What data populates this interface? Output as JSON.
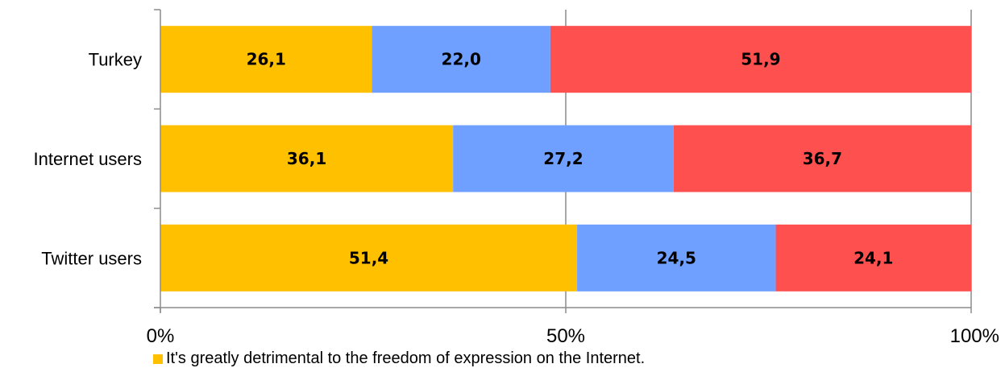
{
  "chart_data": {
    "type": "bar",
    "orientation": "horizontal",
    "stacked": "percent",
    "categories": [
      "Turkey",
      "Internet users",
      "Twitter users"
    ],
    "series": [
      {
        "values": [
          26.1,
          36.1,
          51.4
        ],
        "labels": [
          "26,1",
          "36,1",
          "51,4"
        ],
        "color": "#FFC000"
      },
      {
        "values": [
          22.0,
          27.2,
          24.5
        ],
        "labels": [
          "22,0",
          "27,2",
          "24,5"
        ],
        "color": "#6F9FFF"
      },
      {
        "values": [
          51.9,
          36.7,
          24.1
        ],
        "labels": [
          "51,9",
          "36,7",
          "24,1"
        ],
        "color": "#FF5050"
      }
    ],
    "xticks": [
      "0%",
      "50%",
      "100%"
    ],
    "xlim": [
      0,
      100
    ],
    "grid": "vertical",
    "legend": {
      "placement": "bottom",
      "visible_entries": [
        {
          "text": "It's greatly detrimental to the freedom of expression on the Internet.",
          "color": "#FFC000"
        }
      ]
    }
  }
}
